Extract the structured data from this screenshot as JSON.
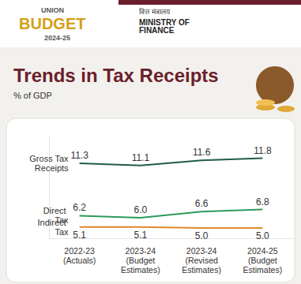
{
  "chart_data": {
    "type": "line",
    "title": "Trends in Tax Receipts",
    "subtitle": "% of GDP",
    "annotations": [
      "UNION",
      "BUDGET",
      "2024-25",
      "वित्त मंत्रालय",
      "MINISTRY OF FINANCE"
    ],
    "categories": [
      "2022-23\n(Actuals)",
      "2023-24\n(Budget\nEstimates)",
      "2023-24\n(Revised\nEstimates)",
      "2024-25\n(Budget\nEstimates)"
    ],
    "series": [
      {
        "name": "Gross Tax Receipts",
        "color": "#1f5c47",
        "values": [
          11.3,
          11.1,
          11.6,
          11.8
        ],
        "value_labels": [
          "11.3",
          "11.1",
          "11.6",
          "11.8"
        ]
      },
      {
        "name": "Direct Tax",
        "color": "#2e9a5c",
        "values": [
          6.2,
          6.0,
          6.6,
          6.8
        ],
        "value_labels": [
          "6.2",
          "6.0",
          "6.6",
          "6.8"
        ]
      },
      {
        "name": "Indirect Tax",
        "color": "#e0892b",
        "values": [
          5.1,
          5.1,
          5.0,
          5.0
        ],
        "value_labels": [
          "5.1",
          "5.1",
          "5.0",
          "5.0"
        ]
      }
    ],
    "ylim": [
      4,
      14
    ],
    "grid": false,
    "data_labels": true,
    "tick_labels": "x"
  }
}
